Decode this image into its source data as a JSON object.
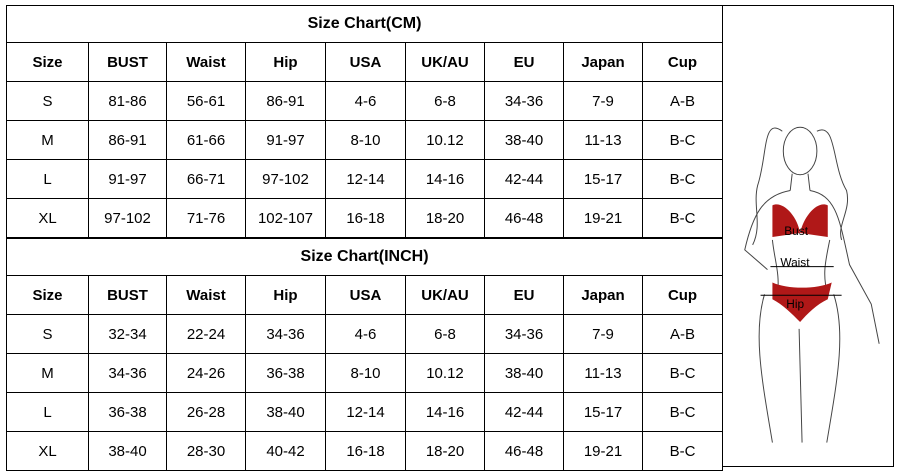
{
  "tables": [
    {
      "title": "Size Chart(CM)",
      "headers": [
        "Size",
        "BUST",
        "Waist",
        "Hip",
        "USA",
        "UK/AU",
        "EU",
        "Japan",
        "Cup"
      ],
      "rows": [
        [
          "S",
          "81-86",
          "56-61",
          "86-91",
          "4-6",
          "6-8",
          "34-36",
          "7-9",
          "A-B"
        ],
        [
          "M",
          "86-91",
          "61-66",
          "91-97",
          "8-10",
          "10.12",
          "38-40",
          "11-13",
          "B-C"
        ],
        [
          "L",
          "91-97",
          "66-71",
          "97-102",
          "12-14",
          "14-16",
          "42-44",
          "15-17",
          "B-C"
        ],
        [
          "XL",
          "97-102",
          "71-76",
          "102-107",
          "16-18",
          "18-20",
          "46-48",
          "19-21",
          "B-C"
        ]
      ]
    },
    {
      "title": "Size Chart(INCH)",
      "headers": [
        "Size",
        "BUST",
        "Waist",
        "Hip",
        "USA",
        "UK/AU",
        "EU",
        "Japan",
        "Cup"
      ],
      "rows": [
        [
          "S",
          "32-34",
          "22-24",
          "34-36",
          "4-6",
          "6-8",
          "34-36",
          "7-9",
          "A-B"
        ],
        [
          "M",
          "34-36",
          "24-26",
          "36-38",
          "8-10",
          "10.12",
          "38-40",
          "11-13",
          "B-C"
        ],
        [
          "L",
          "36-38",
          "26-28",
          "38-40",
          "12-14",
          "14-16",
          "42-44",
          "15-17",
          "B-C"
        ],
        [
          "XL",
          "38-40",
          "28-30",
          "40-42",
          "16-18",
          "18-20",
          "46-48",
          "19-21",
          "B-C"
        ]
      ]
    }
  ],
  "figure": {
    "labels": [
      "Bust",
      "Waist",
      "Hip"
    ]
  }
}
